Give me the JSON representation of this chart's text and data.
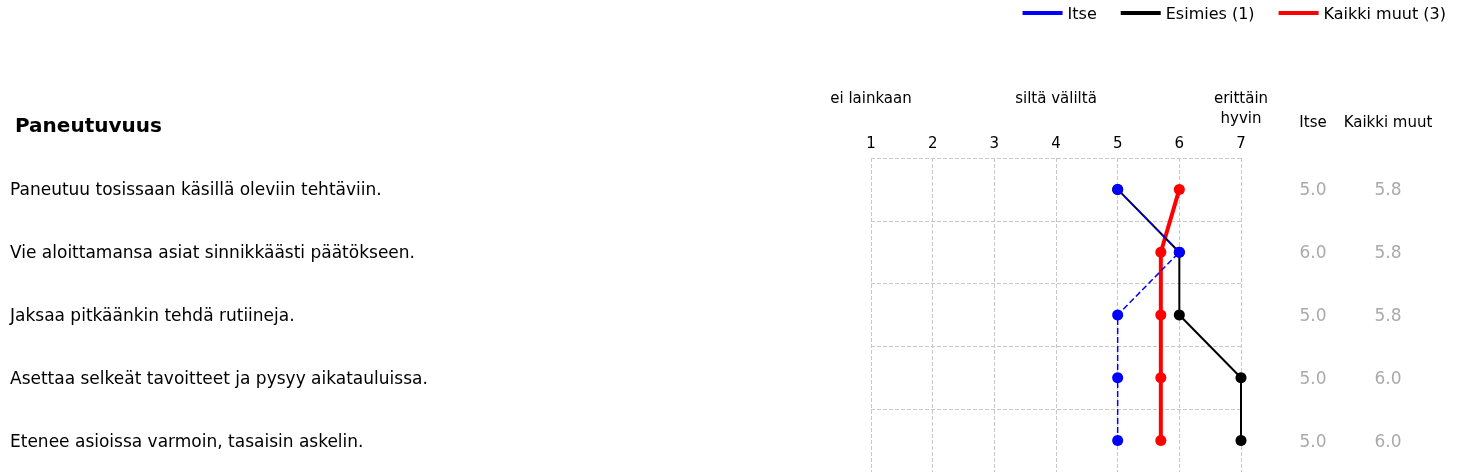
{
  "chart_data": {
    "type": "line",
    "title": "Paneutuvuus",
    "orientation": "horizontal",
    "categories": [
      "Paneutuu tosissaan käsillä oleviin tehtäviin.",
      "Vie aloittamansa asiat sinnikkäästi päätökseen.",
      "Jaksaa pitkäänkin tehdä rutiineja.",
      "Asettaa selkeät tavoitteet ja pysyy aikatauluissa.",
      "Etenee asioissa varmoin, tasaisin askelin."
    ],
    "x2lim": [
      1,
      7
    ],
    "x2ticks": [
      1,
      2,
      3,
      4,
      5,
      6,
      7
    ],
    "series": [
      {
        "name": "Kaikki muut (3)",
        "color": "#ff0000",
        "values": [
          6,
          5.7,
          5.7,
          5.7,
          5.7
        ],
        "line_style": "solid"
      },
      {
        "name": "Esimies (1)",
        "color": "#000000",
        "values": [
          5,
          6,
          6,
          7,
          7
        ],
        "line_style": "solid"
      },
      {
        "name": "Itse",
        "color": "#0000ff",
        "values": [
          5,
          6,
          5,
          5,
          5
        ],
        "line_style": "dashed",
        "value_labels": [
          "5.0",
          "6.0",
          "5.0",
          "5.0",
          "5.0"
        ]
      }
    ],
    "annotations": [
      "Itse",
      "Kaikki muut",
      "ei lainkaan",
      "siltä väliltä",
      "erittäin\nhyvin",
      "5.8",
      "5.8",
      "5.8",
      "6.0",
      "6.0"
    ],
    "marker": "circle",
    "grid": true,
    "legend": "top right"
  }
}
